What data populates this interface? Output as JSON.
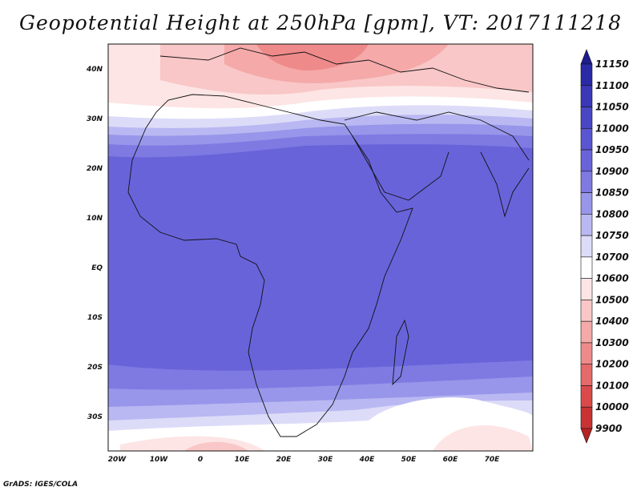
{
  "title": "Geopotential Height at 250hPa [gpm], VT: 2017111218",
  "credit": "GrADS: IGES/COLA",
  "map": {
    "lat_labels": [
      "40N",
      "30N",
      "20N",
      "10N",
      "EQ",
      "10S",
      "20S",
      "30S"
    ],
    "lon_labels": [
      "20W",
      "10W",
      "0",
      "10E",
      "20E",
      "30E",
      "40E",
      "50E",
      "60E",
      "70E"
    ],
    "lon_range": [
      -22,
      80
    ],
    "lat_range": [
      -36,
      45
    ]
  },
  "colorbar": {
    "labels": [
      "11150",
      "11100",
      "11050",
      "11000",
      "10950",
      "10900",
      "10850",
      "10800",
      "10750",
      "10700",
      "10600",
      "10500",
      "10400",
      "10300",
      "10200",
      "10100",
      "10000",
      "9900"
    ],
    "colors": [
      "#1e1c8e",
      "#2a2aa6",
      "#3a37b8",
      "#4a46c4",
      "#5a55d0",
      "#6963da",
      "#7e7ae2",
      "#9896ea",
      "#b9b8f2",
      "#dddcf8",
      "#ffffff",
      "#fde5e5",
      "#f9c7c7",
      "#f5a9a9",
      "#ee8a8a",
      "#e56a6a",
      "#da4a4a",
      "#c93333",
      "#b52323"
    ]
  }
}
